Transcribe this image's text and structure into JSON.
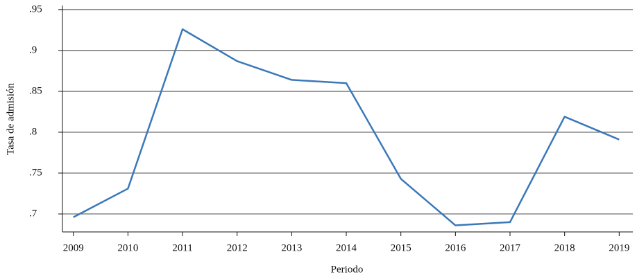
{
  "chart_data": {
    "type": "line",
    "x_label": "Periodo",
    "y_label": "Tasa de admisión",
    "x": [
      2009,
      2010,
      2011,
      2012,
      2013,
      2014,
      2015,
      2016,
      2017,
      2018,
      2019
    ],
    "series": [
      {
        "name": "Tasa de admisión",
        "color": "#3a78b9",
        "values": [
          0.696,
          0.731,
          0.926,
          0.887,
          0.864,
          0.86,
          0.743,
          0.686,
          0.69,
          0.819,
          0.791
        ]
      }
    ],
    "xlim": [
      2008.8,
      2019.25
    ],
    "xticks": [
      2009,
      2010,
      2011,
      2012,
      2013,
      2014,
      2015,
      2016,
      2017,
      2018,
      2019
    ],
    "ylim": [
      0.678,
      0.955
    ],
    "yticks": [
      {
        "value": 0.7,
        "label": ".7"
      },
      {
        "value": 0.75,
        "label": ".75"
      },
      {
        "value": 0.8,
        "label": ".8"
      },
      {
        "value": 0.85,
        "label": ".85"
      },
      {
        "value": 0.9,
        "label": ".9"
      },
      {
        "value": 0.95,
        "label": ".95"
      }
    ],
    "grid": true
  }
}
